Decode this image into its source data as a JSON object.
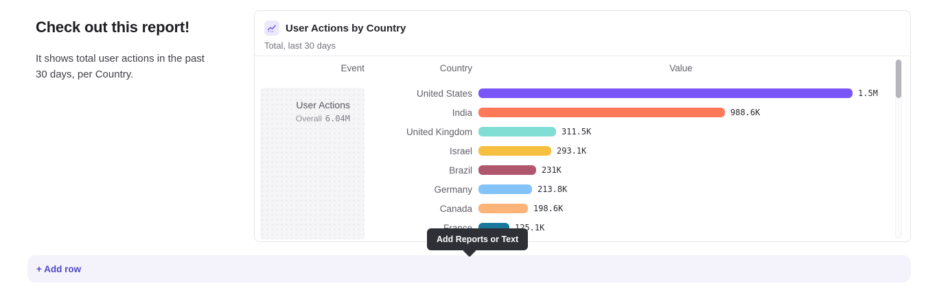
{
  "intro": {
    "title": "Check out this report!",
    "description": "It shows total user actions in the past 30 days, per Country."
  },
  "report_card": {
    "icon": "line-chart-icon",
    "title": "User Actions by Country",
    "subtitle": "Total, last 30 days",
    "columns": [
      "Event",
      "Country",
      "Value"
    ],
    "event_cell": {
      "name": "User Actions",
      "overall_label": "Overall",
      "overall_value": "6.04M"
    }
  },
  "chart_data": {
    "type": "bar",
    "orientation": "horizontal",
    "title": "User Actions by Country",
    "subtitle": "Total, last 30 days",
    "categories": [
      "United States",
      "India",
      "United Kingdom",
      "Israel",
      "Brazil",
      "Germany",
      "Canada",
      "France"
    ],
    "values": [
      1500000,
      988600,
      311500,
      293100,
      231000,
      213800,
      198600,
      125100
    ],
    "value_labels": [
      "1.5M",
      "988.6K",
      "311.5K",
      "293.1K",
      "231K",
      "213.8K",
      "198.6K",
      "125.1K"
    ],
    "bar_colors": [
      "#7a56fa",
      "#ff7857",
      "#80ded4",
      "#f7bf40",
      "#b1566f",
      "#83c3f7",
      "#fcb478",
      "#17789c"
    ],
    "overall_total": "6.04M",
    "xlim": [
      0,
      1500000
    ],
    "grid": false,
    "legend": false
  },
  "tooltip": {
    "label": "Add Reports or Text"
  },
  "add_row": {
    "label": "+ Add row"
  },
  "ui_colors": {
    "accent_purple": "#7a56fa",
    "card_border": "#e5e5e8",
    "add_row_bg": "#f4f3fb",
    "add_row_text": "#4f48c4",
    "tooltip_bg": "#2f3036",
    "event_cell_bg": "#f5f5f7"
  }
}
